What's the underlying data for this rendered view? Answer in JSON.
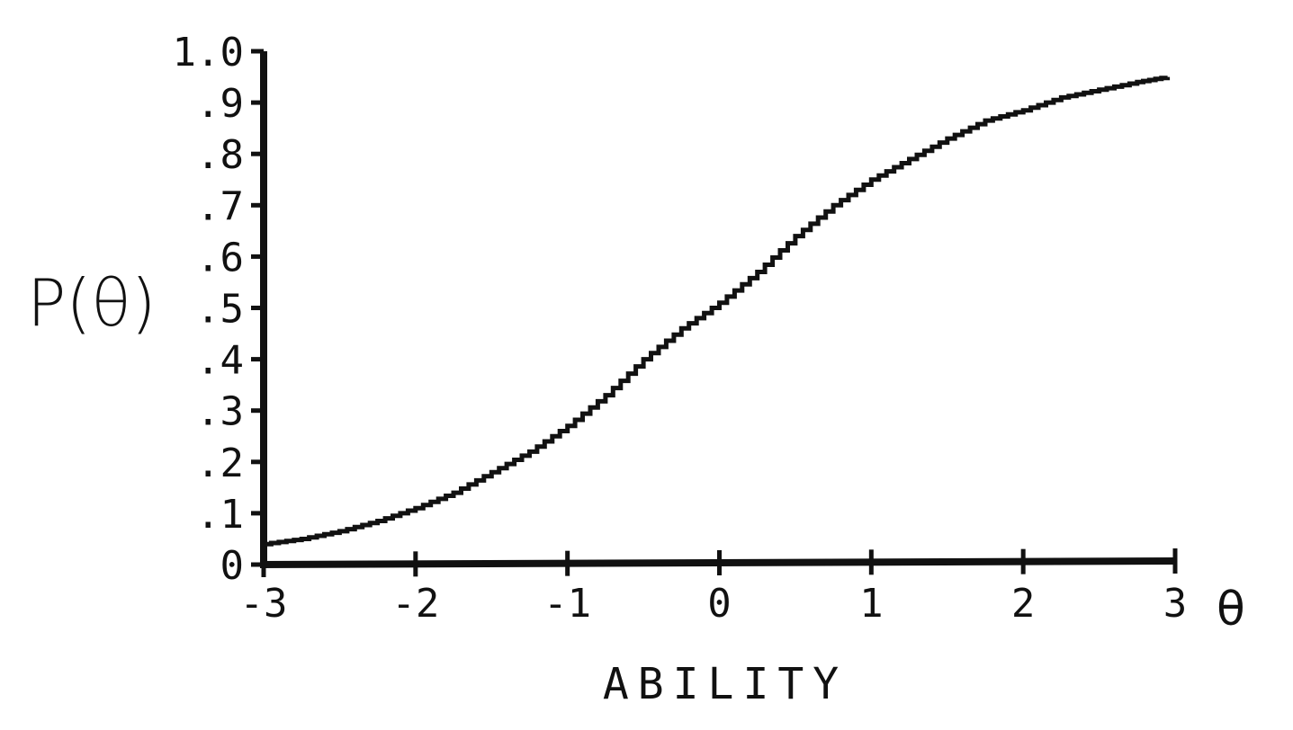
{
  "chart_data": {
    "type": "line",
    "title": "",
    "ylabel": "P(θ)",
    "xlabel": "ABILITY",
    "xaxis_symbol": "θ",
    "xlim": [
      -3,
      3
    ],
    "ylim": [
      0,
      1.0
    ],
    "xticks": [
      -3,
      -2,
      -1,
      0,
      1,
      2,
      3
    ],
    "xtick_labels": [
      "-3",
      "-2",
      "-1",
      "0",
      "1",
      "2",
      "3"
    ],
    "yticks": [
      0,
      0.1,
      0.2,
      0.3,
      0.4,
      0.5,
      0.6,
      0.7,
      0.8,
      0.9,
      1.0
    ],
    "ytick_labels": [
      "0",
      ".1",
      ".2",
      ".3",
      ".4",
      ".5",
      ".6",
      ".7",
      ".8",
      ".9",
      "1.0"
    ],
    "grid": false,
    "line_color": "#111111",
    "series": [
      {
        "x": [
          -3.0,
          -2.75,
          -2.5,
          -2.25,
          -2.0,
          -1.75,
          -1.5,
          -1.25,
          -1.0,
          -0.75,
          -0.5,
          -0.25,
          0.0,
          0.25,
          0.5,
          0.75,
          1.0,
          1.25,
          1.5,
          1.75,
          2.0,
          2.25,
          2.5,
          2.75,
          2.95
        ],
        "y": [
          0.04,
          0.05,
          0.065,
          0.085,
          0.11,
          0.14,
          0.18,
          0.22,
          0.27,
          0.33,
          0.4,
          0.46,
          0.51,
          0.57,
          0.64,
          0.7,
          0.75,
          0.79,
          0.83,
          0.865,
          0.885,
          0.91,
          0.925,
          0.94,
          0.95
        ]
      }
    ]
  }
}
